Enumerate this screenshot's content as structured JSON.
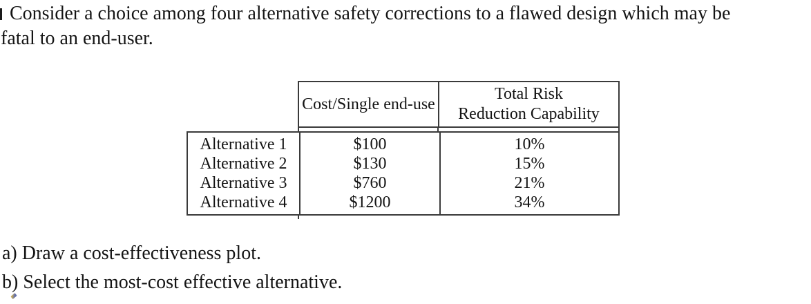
{
  "problem": {
    "intro_line1": "Consider a choice among four alternative safety corrections to a flawed design which may be",
    "intro_line2": "fatal to an end-user.",
    "questions": [
      "a) Draw a cost-effectiveness plot.",
      "b) Select the most-cost effective alternative."
    ]
  },
  "table": {
    "header": {
      "col1_label": "",
      "col2_label": "Cost/Single end-use",
      "col3_label_line1": "Total Risk",
      "col3_label_line2": "Reduction Capability"
    },
    "rows": [
      {
        "label": "Alternative 1",
        "cost": "$100",
        "risk": "10%"
      },
      {
        "label": "Alternative 2",
        "cost": "$130",
        "risk": "15%"
      },
      {
        "label": "Alternative 3",
        "cost": "$760",
        "risk": "21%"
      },
      {
        "label": "Alternative 4",
        "cost": "$1200",
        "risk": "34%"
      }
    ]
  },
  "colors": {
    "text": "#141414",
    "table_border": "#3a3a3a",
    "background": "#ffffff"
  }
}
